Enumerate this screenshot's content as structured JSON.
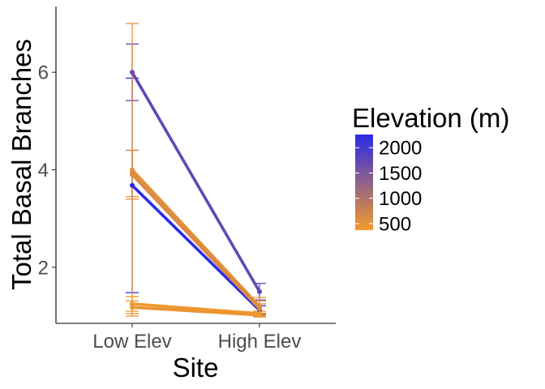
{
  "chart_data": {
    "type": "line",
    "xlabel": "Site",
    "ylabel": "Total Basal Branches",
    "categories": [
      "Low Elev",
      "High Elev"
    ],
    "yticks": [
      2,
      4,
      6
    ],
    "ylim": [
      0.85,
      7.35
    ],
    "grid": false,
    "legend": {
      "title": "Elevation (m)",
      "placement": "right",
      "type": "colorbar",
      "labels": [
        "2000",
        "1500",
        "1000",
        "500"
      ],
      "values": [
        2000,
        1500,
        1000,
        500
      ],
      "range": [
        370,
        2260
      ],
      "color_low": "#F39A2B",
      "color_high": "#2A2AE8"
    },
    "series": [
      {
        "elevation": 1750,
        "values": [
          6.0,
          1.5
        ],
        "err_low": [
          5.42,
          1.33
        ],
        "err_high": [
          6.58,
          1.67
        ]
      },
      {
        "elevation": 2250,
        "values": [
          3.68,
          1.12
        ],
        "err_low": [
          1.48,
          1.03
        ],
        "err_high": [
          5.88,
          1.21
        ]
      },
      {
        "elevation": 500,
        "values": [
          4.0,
          1.2
        ],
        "err_low": [
          1.0,
          1.02
        ],
        "err_high": [
          7.0,
          1.38
        ]
      },
      {
        "elevation": 560,
        "values": [
          3.95,
          1.18
        ],
        "err_low": [
          3.45,
          1.05
        ],
        "err_high": [
          4.4,
          1.31
        ]
      },
      {
        "elevation": 620,
        "values": [
          3.9,
          1.15
        ],
        "err_low": [
          3.4,
          1.05
        ],
        "err_high": [
          4.4,
          1.25
        ]
      },
      {
        "elevation": 400,
        "values": [
          1.25,
          1.05
        ],
        "err_low": [
          1.1,
          1.0
        ],
        "err_high": [
          1.4,
          1.1
        ]
      },
      {
        "elevation": 450,
        "values": [
          1.18,
          1.02
        ],
        "err_low": [
          1.05,
          0.98
        ],
        "err_high": [
          1.31,
          1.06
        ]
      }
    ]
  }
}
